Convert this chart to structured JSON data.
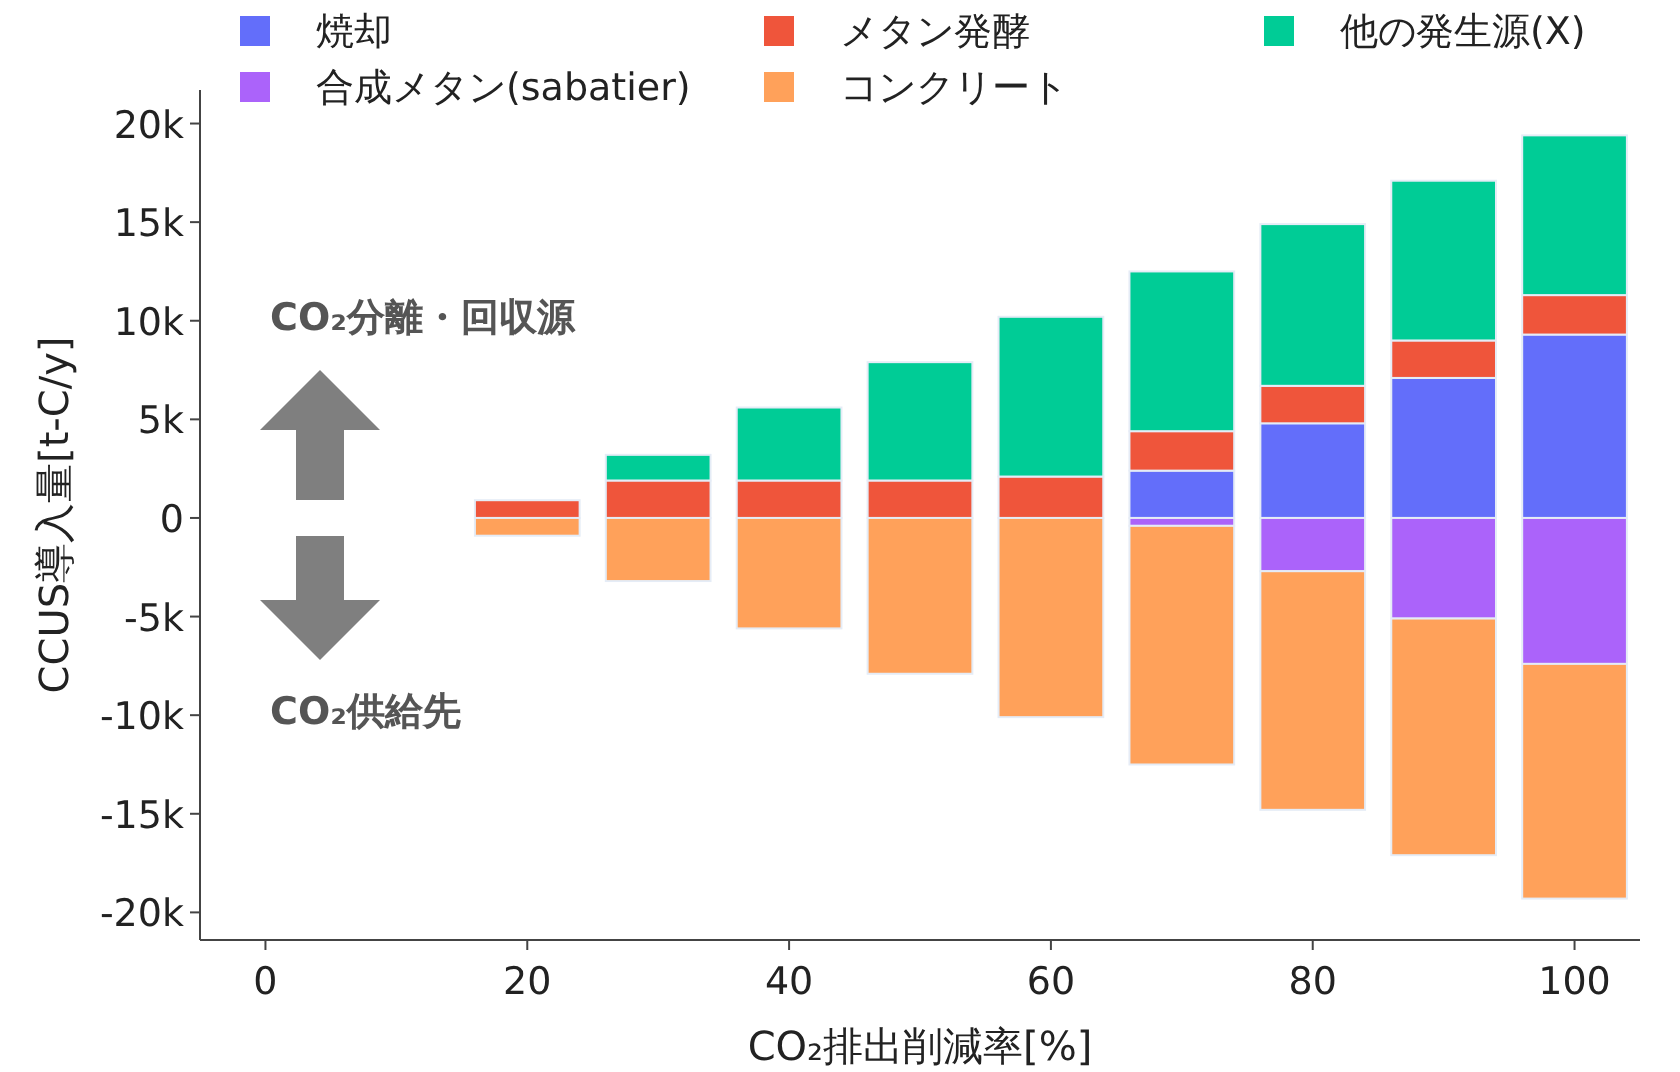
{
  "chart_data": {
    "type": "bar",
    "stacked": true,
    "xlabel": "CO₂排出削減率[%]",
    "ylabel": "CCUS導入量[t-C/y]",
    "x": [
      0,
      10,
      20,
      30,
      40,
      50,
      60,
      70,
      80,
      90,
      100
    ],
    "series": [
      {
        "name": "焼却",
        "color": "#636efa",
        "values": [
          0,
          0,
          0,
          0,
          0,
          0,
          0,
          2400,
          4800,
          7100,
          9300
        ]
      },
      {
        "name": "合成メタン(sabatier)",
        "color": "#ab63fa",
        "values": [
          0,
          0,
          0,
          0,
          0,
          0,
          0,
          -400,
          -2700,
          -5100,
          -7400
        ]
      },
      {
        "name": "メタン発酵",
        "color": "#ef553b",
        "values": [
          0,
          0,
          900,
          1900,
          1900,
          1900,
          2100,
          2000,
          1900,
          1900,
          2000
        ]
      },
      {
        "name": "コンクリート",
        "color": "#ffa15a",
        "values": [
          0,
          0,
          -900,
          -3200,
          -5600,
          -7900,
          -10100,
          -12100,
          -12100,
          -12000,
          -11900
        ]
      },
      {
        "name": "他の発生源(X)",
        "color": "#00cc96",
        "values": [
          0,
          0,
          0,
          1300,
          3700,
          6000,
          8100,
          8100,
          8200,
          8100,
          8100
        ]
      }
    ],
    "xlim": [
      -5,
      105
    ],
    "ylim": [
      -21400,
      21700
    ],
    "xticks": [
      0,
      20,
      40,
      60,
      80,
      100
    ],
    "yticks": [
      {
        "value": -20000,
        "label": "-20k"
      },
      {
        "value": -15000,
        "label": "-15k"
      },
      {
        "value": -10000,
        "label": "-10k"
      },
      {
        "value": -5000,
        "label": "-5k"
      },
      0,
      {
        "value": 5000,
        "label": "5k"
      },
      {
        "value": 10000,
        "label": "10k"
      },
      {
        "value": 15000,
        "label": "15k"
      },
      {
        "value": 20000,
        "label": "20k"
      }
    ],
    "annotations": [
      "CO₂分離・回収源",
      "CO₂供給先"
    ],
    "legend": "top",
    "grid": false
  }
}
